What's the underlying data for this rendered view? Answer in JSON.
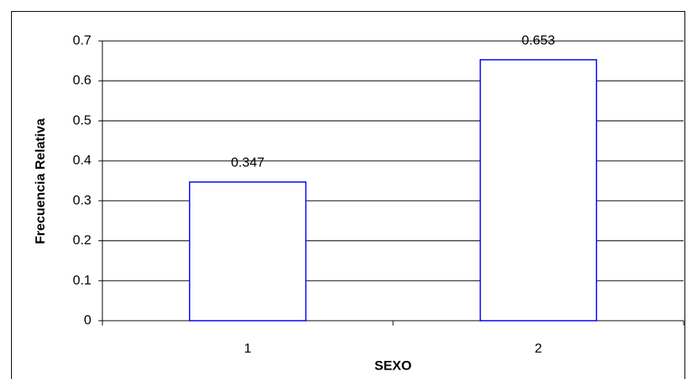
{
  "chart_data": {
    "type": "bar",
    "x_label": "SEXO",
    "y_label": "Frecuencia Relativa",
    "categories": [
      "1",
      "2"
    ],
    "values": [
      0.347,
      0.653
    ],
    "color": "#0000ff",
    "ylim": [
      0,
      0.7
    ],
    "yticks": [
      0,
      0.1,
      0.2,
      0.3,
      0.4,
      0.5,
      0.6,
      0.7
    ],
    "grid": true
  }
}
